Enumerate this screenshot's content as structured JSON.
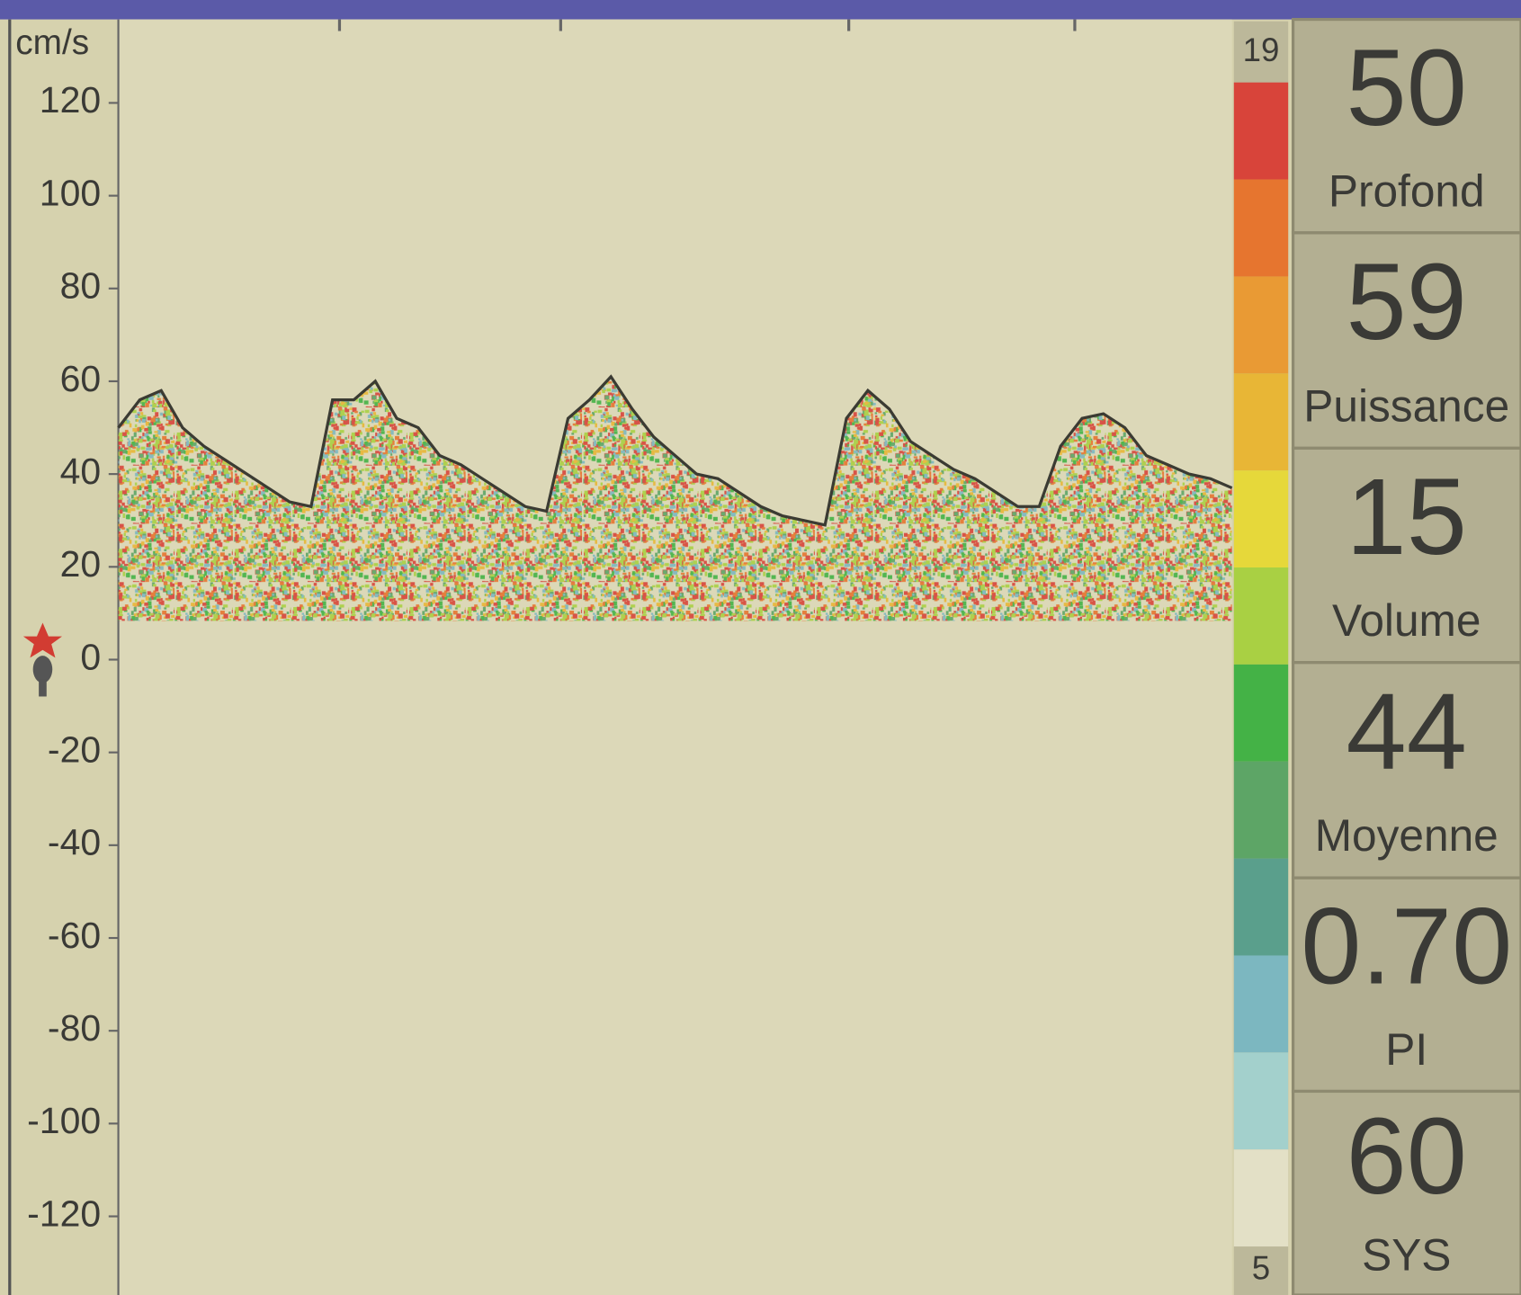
{
  "spectrum": {
    "y_unit": "cm/s",
    "ylim": [
      -138,
      138
    ],
    "yticks": [
      120,
      100,
      80,
      60,
      40,
      20,
      0,
      -20,
      -40,
      -60,
      -80,
      -100,
      -120
    ],
    "envelope": [
      50,
      56,
      58,
      50,
      46,
      43,
      40,
      37,
      34,
      33,
      56,
      56,
      60,
      52,
      50,
      44,
      42,
      39,
      36,
      33,
      32,
      52,
      56,
      61,
      54,
      48,
      44,
      40,
      39,
      36,
      33,
      31,
      30,
      29,
      52,
      58,
      54,
      47,
      44,
      41,
      39,
      36,
      33,
      33,
      46,
      52,
      53,
      50,
      44,
      42,
      40,
      39,
      37
    ]
  },
  "color_scale": {
    "max": 19,
    "min": 5
  },
  "readouts": [
    {
      "value": "50",
      "label": "Profond"
    },
    {
      "value": "59",
      "label": "Puissance"
    },
    {
      "value": "15",
      "label": "Volume"
    },
    {
      "value": "44",
      "label": "Moyenne"
    },
    {
      "value": "0.70",
      "label": "PI"
    },
    {
      "value": "60",
      "label": "SYS"
    }
  ]
}
